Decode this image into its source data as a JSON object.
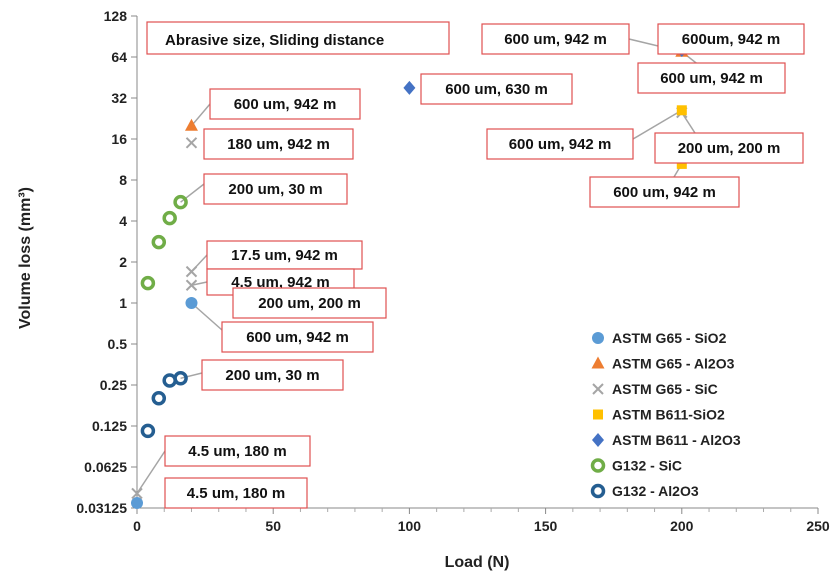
{
  "chart_data": {
    "type": "scatter",
    "xlabel": "Load (N)",
    "ylabel": "Volume loss (mm³)",
    "xlim": [
      0,
      250
    ],
    "x_ticks": [
      0,
      50,
      100,
      150,
      200,
      250
    ],
    "ylim": [
      0.03125,
      128
    ],
    "y_scale": "log2",
    "y_ticks": [
      0.03125,
      0.0625,
      0.125,
      0.25,
      0.5,
      1,
      2,
      4,
      8,
      16,
      32,
      64,
      128
    ],
    "y_tick_labels": [
      "0.03125",
      "0.0625",
      "0.125",
      "0.25",
      "0.5",
      "1",
      "2",
      "4",
      "8",
      "16",
      "32",
      "64",
      "128"
    ],
    "grid": false,
    "legend_position": "bottom-right",
    "header_box": "Abrasive size, Sliding distance",
    "series": [
      {
        "name": "ASTM G65 - SiO2",
        "marker": "circle",
        "color": "#5B9BD5",
        "points": [
          [
            0,
            0.034
          ],
          [
            20,
            1.0
          ]
        ]
      },
      {
        "name": "ASTM G65 - Al2O3",
        "marker": "triangle",
        "color": "#ED7D31",
        "points": [
          [
            20,
            20
          ],
          [
            200,
            70
          ]
        ]
      },
      {
        "name": "ASTM G65 - SiC",
        "marker": "x",
        "color": "#A5A5A5",
        "points": [
          [
            0,
            0.04
          ],
          [
            20,
            1.35
          ],
          [
            20,
            1.7
          ],
          [
            20,
            15
          ],
          [
            200,
            25
          ]
        ]
      },
      {
        "name": "ASTM B611-SiO2",
        "marker": "square",
        "color": "#FFC000",
        "points": [
          [
            40,
            1.0
          ],
          [
            200,
            10.5
          ],
          [
            200,
            26
          ]
        ]
      },
      {
        "name": "ASTM B611 - Al2O3",
        "marker": "diamond",
        "color": "#4472C4",
        "points": [
          [
            100,
            38
          ],
          [
            200,
            72
          ]
        ]
      },
      {
        "name": "G132 - SiC",
        "marker": "ring",
        "color": "#70AD47",
        "points": [
          [
            4,
            1.4
          ],
          [
            8,
            2.8
          ],
          [
            12,
            4.2
          ],
          [
            16,
            5.5
          ]
        ]
      },
      {
        "name": "G132 - Al2O3",
        "marker": "ring",
        "color": "#255E91",
        "points": [
          [
            4,
            0.115
          ],
          [
            8,
            0.2
          ],
          [
            12,
            0.27
          ],
          [
            16,
            0.28
          ]
        ]
      }
    ],
    "annotations": [
      {
        "text": "600 um, 942 m",
        "x": 200,
        "y": 70
      },
      {
        "text": "600um, 942 m",
        "x": 200,
        "y": 72
      },
      {
        "text": "600 um, 942 m",
        "x": 200,
        "y": 70
      },
      {
        "text": "600 um, 630 m",
        "x": 100,
        "y": 38
      },
      {
        "text": "600 um, 942 m",
        "x": 20,
        "y": 20
      },
      {
        "text": "180 um, 942 m",
        "x": 20,
        "y": 15
      },
      {
        "text": "200 um, 30 m",
        "x": 16,
        "y": 5.5
      },
      {
        "text": "17.5 um, 942 m",
        "x": 20,
        "y": 1.7
      },
      {
        "text": "4.5 um, 942 m",
        "x": 20,
        "y": 1.35
      },
      {
        "text": "200 um, 200 m",
        "x": 40,
        "y": 1.0
      },
      {
        "text": "600 um, 942 m",
        "x": 20,
        "y": 1.0
      },
      {
        "text": "200 um, 30 m",
        "x": 16,
        "y": 0.28
      },
      {
        "text": "4.5 um, 180 m",
        "x": 0,
        "y": 0.04
      },
      {
        "text": "4.5 um, 180 m",
        "x": 0,
        "y": 0.034
      },
      {
        "text": "600 um, 942 m",
        "x": 200,
        "y": 26
      },
      {
        "text": "200 um, 200 m",
        "x": 200,
        "y": 25
      },
      {
        "text": "600 um, 942 m",
        "x": 200,
        "y": 10.5
      }
    ]
  }
}
